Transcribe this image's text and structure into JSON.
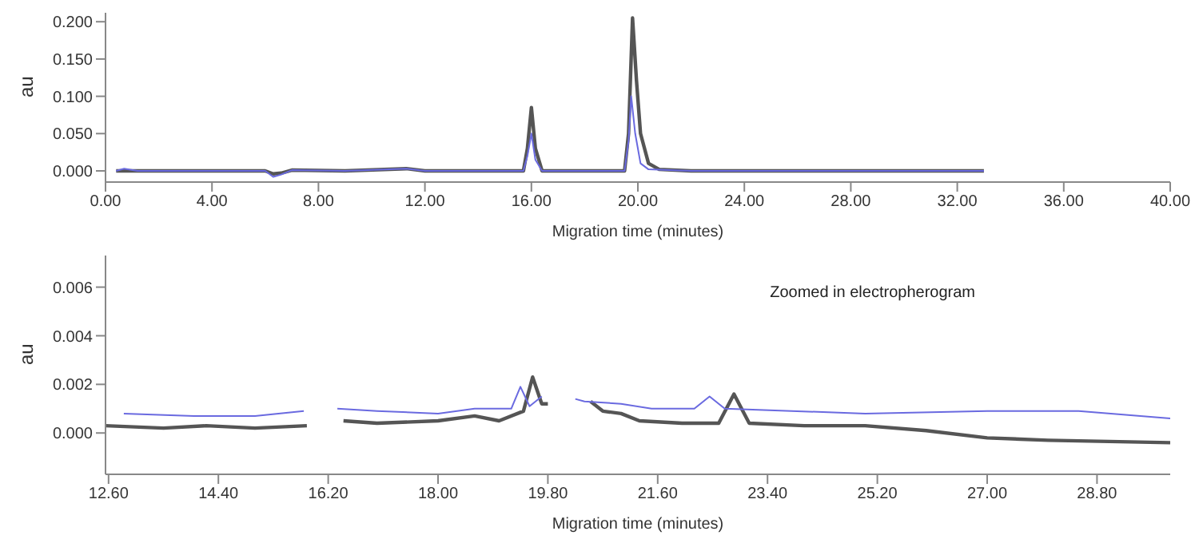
{
  "chart_data": [
    {
      "type": "line",
      "xlabel": "Migration time (minutes)",
      "ylabel": "au",
      "xlim": [
        0,
        40
      ],
      "xticks": [
        {
          "value": 0,
          "label": "0.00"
        },
        {
          "value": 4,
          "label": "4.00"
        },
        {
          "value": 8,
          "label": "8.00"
        },
        {
          "value": 12,
          "label": "12.00"
        },
        {
          "value": 16,
          "label": "16.00"
        },
        {
          "value": 20,
          "label": "20.00"
        },
        {
          "value": 24,
          "label": "24.00"
        },
        {
          "value": 28,
          "label": "28.00"
        },
        {
          "value": 32,
          "label": "32.00"
        },
        {
          "value": 36,
          "label": "36.00"
        },
        {
          "value": 40,
          "label": "40.00"
        }
      ],
      "ylim": [
        -0.015,
        0.212
      ],
      "yticks": [
        {
          "value": 0,
          "label": "0.000"
        },
        {
          "value": 0.05,
          "label": "0.050"
        },
        {
          "value": 0.1,
          "label": "0.100"
        },
        {
          "value": 0.15,
          "label": "0.150"
        },
        {
          "value": 0.2,
          "label": "0.200"
        }
      ],
      "grid": false,
      "legend": false,
      "marker": "none",
      "line_style": "solid",
      "series": [
        {
          "color": "#555555",
          "x": [
            0.4,
            3,
            6,
            6.3,
            6.6,
            7,
            9,
            11.3,
            12,
            15.7,
            15.85,
            16.0,
            16.15,
            16.4,
            19.5,
            19.65,
            19.8,
            19.95,
            20.1,
            20.4,
            20.8,
            22,
            33
          ],
          "values": [
            0,
            0,
            0,
            -0.004,
            -0.003,
            0.001,
            0,
            0.003,
            0,
            0,
            0.03,
            0.085,
            0.03,
            0,
            0,
            0.05,
            0.205,
            0.12,
            0.05,
            0.01,
            0.002,
            0,
            0
          ]
        },
        {
          "color": "#6a6ae0",
          "x": [
            0.4,
            0.7,
            1.2,
            6,
            6.3,
            6.6,
            7,
            9,
            11.3,
            12,
            15.7,
            15.85,
            16.0,
            16.15,
            16.4,
            19.5,
            19.65,
            19.75,
            19.9,
            20.1,
            20.4,
            22,
            33
          ],
          "values": [
            0,
            0.003,
            0,
            0,
            -0.008,
            -0.005,
            0.001,
            0,
            0.003,
            0,
            0,
            0.02,
            0.05,
            0.015,
            0,
            0,
            0.04,
            0.1,
            0.05,
            0.01,
            0.002,
            0,
            0
          ]
        }
      ]
    },
    {
      "type": "line",
      "xlabel": "Migration time (minutes)",
      "ylabel": "au",
      "annotations": [
        "Zoomed in electropherogram"
      ],
      "xlim": [
        12.55,
        30.0
      ],
      "xticks": [
        {
          "value": 12.6,
          "label": "12.60"
        },
        {
          "value": 14.4,
          "label": "14.40"
        },
        {
          "value": 16.2,
          "label": "16.20"
        },
        {
          "value": 18,
          "label": "18.00"
        },
        {
          "value": 19.8,
          "label": "19.80"
        },
        {
          "value": 21.6,
          "label": "21.60"
        },
        {
          "value": 23.4,
          "label": "23.40"
        },
        {
          "value": 25.2,
          "label": "25.20"
        },
        {
          "value": 27,
          "label": "27.00"
        },
        {
          "value": 28.8,
          "label": "28.80"
        }
      ],
      "ylim": [
        -0.0017,
        0.0073
      ],
      "yticks": [
        {
          "value": 0,
          "label": "0.000"
        },
        {
          "value": 0.002,
          "label": "0.002"
        },
        {
          "value": 0.004,
          "label": "0.004"
        },
        {
          "value": 0.006,
          "label": "0.006"
        }
      ],
      "grid": false,
      "legend": false,
      "marker": "none",
      "line_style": "solid",
      "series": [
        {
          "color": "#555555",
          "x": [
            12.55,
            13.5,
            14.2,
            15,
            15.85,
            15.92,
            16.3,
            16.45,
            17,
            18,
            18.6,
            19.0,
            19.4,
            19.55,
            19.7,
            19.8,
            19.85,
            20.35,
            20.5,
            20.7,
            21,
            21.3,
            22,
            22.6,
            22.85,
            23.1,
            24,
            25,
            26,
            27,
            28,
            30
          ],
          "values": [
            0.0003,
            0.0002,
            0.0003,
            0.0002,
            0.0003,
            null,
            null,
            0.0005,
            0.0004,
            0.0005,
            0.0007,
            0.0005,
            0.0009,
            0.0023,
            0.0012,
            0.0012,
            null,
            null,
            0.0013,
            0.0009,
            0.0008,
            0.0005,
            0.0004,
            0.0004,
            0.0016,
            0.0004,
            0.0003,
            0.0003,
            0.0001,
            -0.0002,
            -0.0003,
            -0.0004
          ]
        },
        {
          "color": "#6a6ae0",
          "x": [
            12.85,
            14,
            15,
            15.8,
            15.85,
            16.25,
            16.35,
            17,
            18,
            18.6,
            19.2,
            19.35,
            19.5,
            19.7,
            19.75,
            19.9,
            20.25,
            20.4,
            21,
            21.5,
            22.2,
            22.45,
            22.7,
            25,
            27,
            28.5,
            30
          ],
          "values": [
            0.0008,
            0.0007,
            0.0007,
            0.0009,
            null,
            null,
            0.001,
            0.0009,
            0.0008,
            0.001,
            0.001,
            0.0019,
            0.0011,
            0.0015,
            null,
            null,
            0.0014,
            0.0013,
            0.0012,
            0.001,
            0.001,
            0.0015,
            0.001,
            0.0008,
            0.0009,
            0.0009,
            0.0006
          ]
        }
      ]
    }
  ]
}
